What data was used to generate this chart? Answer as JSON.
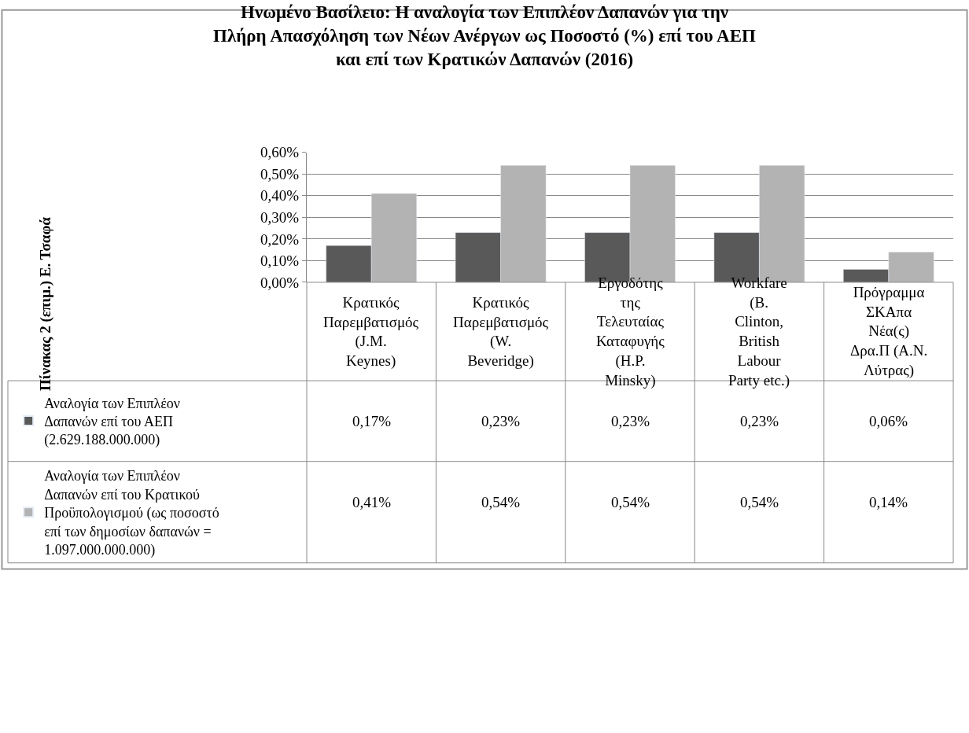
{
  "chart_data": {
    "type": "bar",
    "title": "Ηνωμένο Βασίλειο: Η αναλογία των Επιπλέον Δαπανών για την Πλήρη Απασχόληση των Νέων Ανέργων ως Ποσοστό (%) επί του ΑΕΠ και επί των Κρατικών Δαπανών (2016)",
    "annotations": [
      "Πίνακας 2 (επιμ.) Ε. Τσαφά"
    ],
    "legend": "bottom left",
    "categories": [
      "Κρατικός Παρεμβατισμός (J.M. Keynes)",
      "Κρατικός Παρεμβατισμός (W. Beveridge)",
      "Εργοδότης της Τελευταίας Καταφυγής (H.P. Minsky)",
      "Workfare (B. Clinton, British Labour Party etc.)",
      "Πρόγραμμα ΣΚΑπα Νέα(ς) Δρα.Π (Α.Ν. Λύτρας)"
    ],
    "series": [
      {
        "name": "Αναλογία των Επιπλέον Δαπανών επί του ΑΕΠ (2.629.188.000.000)",
        "color": "#595959",
        "values": [
          0.17,
          0.23,
          0.23,
          0.23,
          0.06
        ],
        "value_labels": [
          "0,17%",
          "0,23%",
          "0,23%",
          "0,23%",
          "0,06%"
        ]
      },
      {
        "name": "Αναλογία των Επιπλέον Δαπανών επί του Κρατικού Προϋπολογισμού (ως ποσοστό επί των δημοσίων δαπανών = 1.097.000.000.000)",
        "color": "#b3b3b3",
        "values": [
          0.41,
          0.54,
          0.54,
          0.54,
          0.14
        ],
        "value_labels": [
          "0,41%",
          "0,54%",
          "0,54%",
          "0,54%",
          "0,14%"
        ]
      }
    ],
    "ylim": [
      0,
      0.6
    ],
    "yticks": [
      {
        "value": 0,
        "label": "0,00%"
      },
      {
        "value": 0.1,
        "label": "0,10%"
      },
      {
        "value": 0.2,
        "label": "0,20%"
      },
      {
        "value": 0.3,
        "label": "0,30%"
      },
      {
        "value": 0.4,
        "label": "0,40%"
      },
      {
        "value": 0.5,
        "label": "0,50%"
      },
      {
        "value": 0.6,
        "label": "0,60%"
      }
    ],
    "grid": "y"
  }
}
